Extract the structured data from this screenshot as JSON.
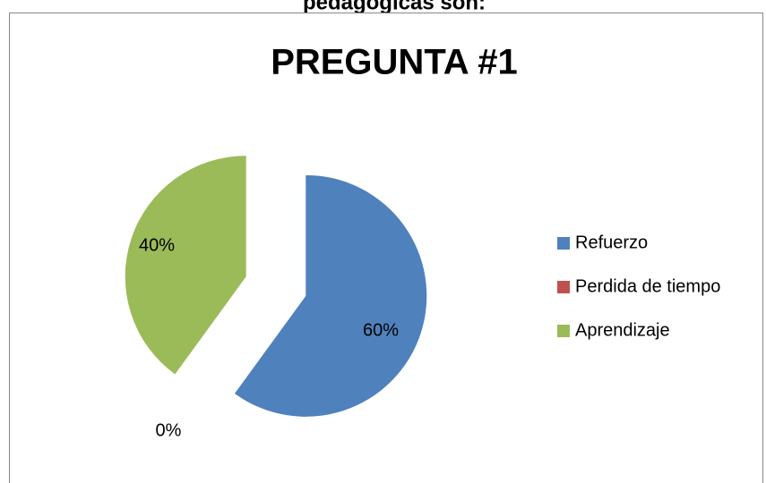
{
  "caption": "pedagógicas son:",
  "chart_data": {
    "type": "pie",
    "title": "PREGUNTA #1",
    "categories": [
      "Refuerzo",
      "Perdida de tiempo",
      "Aprendizaje"
    ],
    "values": [
      60,
      0,
      40
    ],
    "value_labels": [
      "60%",
      "0%",
      "40%"
    ],
    "colors": [
      "#4f81bd",
      "#c0504d",
      "#9bbb59"
    ],
    "legend": "right"
  }
}
